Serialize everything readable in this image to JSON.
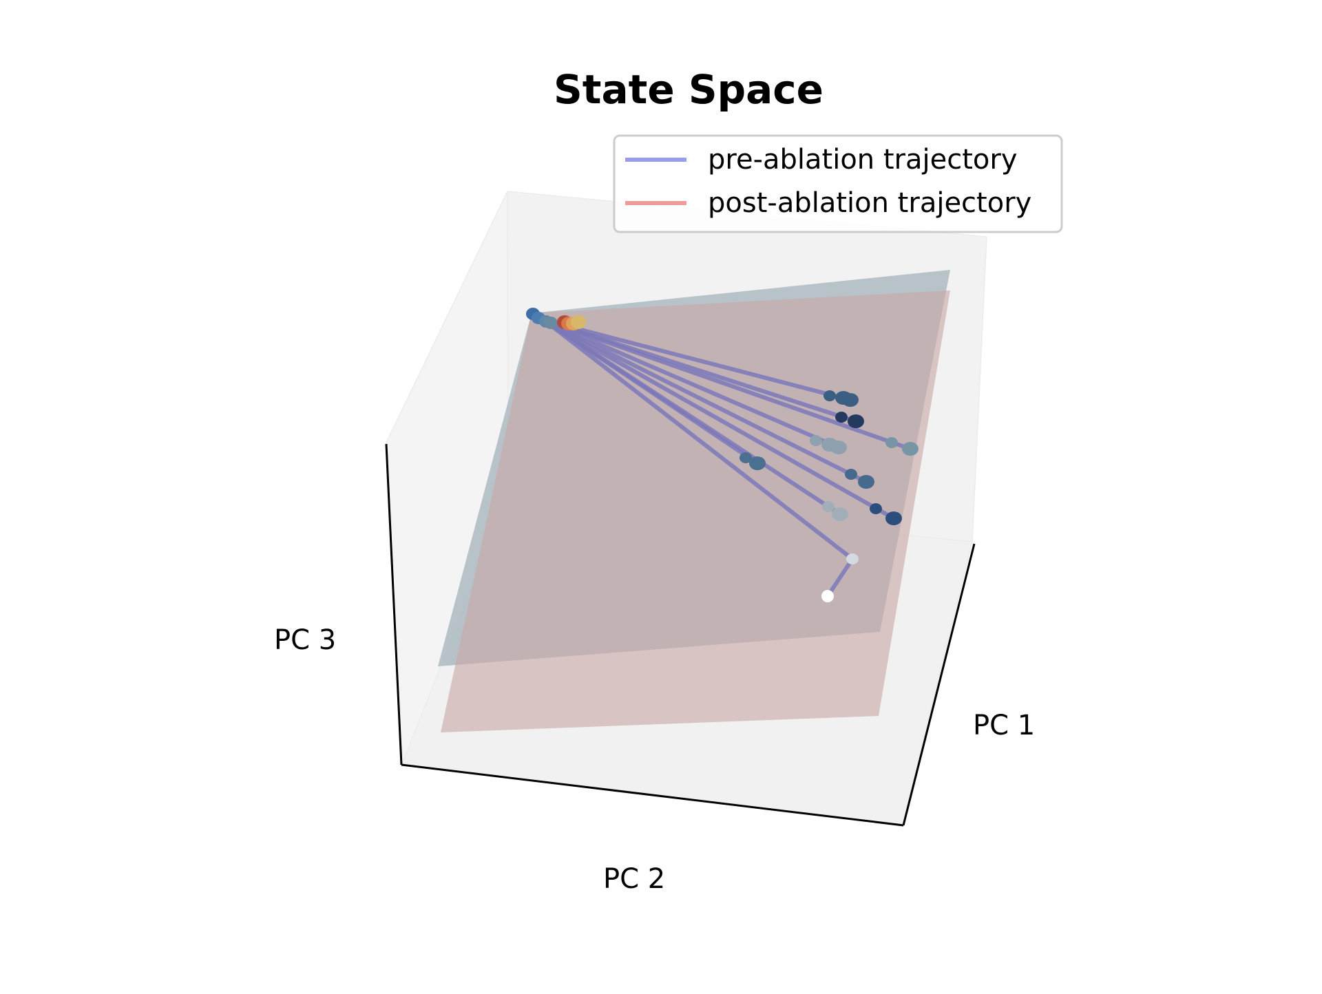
{
  "chart_data": {
    "type": "scatter",
    "subtype": "3d-trajectory",
    "title": "State Space",
    "axes": {
      "x": {
        "label": "PC 1"
      },
      "y": {
        "label": "PC 2"
      },
      "z": {
        "label": "PC 3"
      }
    },
    "legend": {
      "position": "top-right",
      "entries": [
        {
          "label": "pre-ablation trajectory",
          "color": "#9b9bee"
        },
        {
          "label": "post-ablation trajectory",
          "color": "#ee9b9b"
        }
      ]
    },
    "planes": [
      {
        "name": "pre-ablation plane",
        "color": "#9fb0b8"
      },
      {
        "name": "post-ablation plane",
        "color": "#c9aaaa"
      }
    ],
    "series": [
      {
        "name": "pre-ablation trajectory",
        "color": "#7b78b9"
      },
      {
        "name": "post-ablation trajectory",
        "color": "#c78a8a"
      }
    ],
    "colors": {
      "trajectory_line": "#7b78b9",
      "pane": "#f3f3f3",
      "axis": "#000000"
    }
  }
}
